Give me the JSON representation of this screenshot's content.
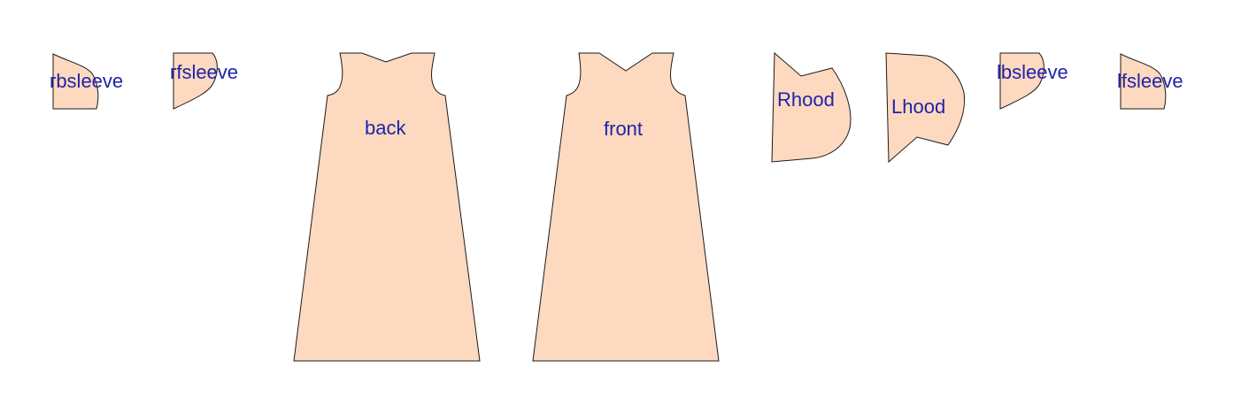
{
  "colors": {
    "fabric_fill": "#fdd9c0",
    "outline": "#1a1a1a",
    "label_text": "#1f24a8",
    "background": "#ffffff"
  },
  "pieces": {
    "rbsleeve": {
      "label": "rbsleeve"
    },
    "rfsleeve": {
      "label": "rfsleeve"
    },
    "back": {
      "label": "back"
    },
    "front": {
      "label": "front"
    },
    "rhood": {
      "label": "Rhood"
    },
    "lhood": {
      "label": "Lhood"
    },
    "lbsleeve": {
      "label": "lbsleeve"
    },
    "lfsleeve": {
      "label": "lfsleeve"
    }
  }
}
